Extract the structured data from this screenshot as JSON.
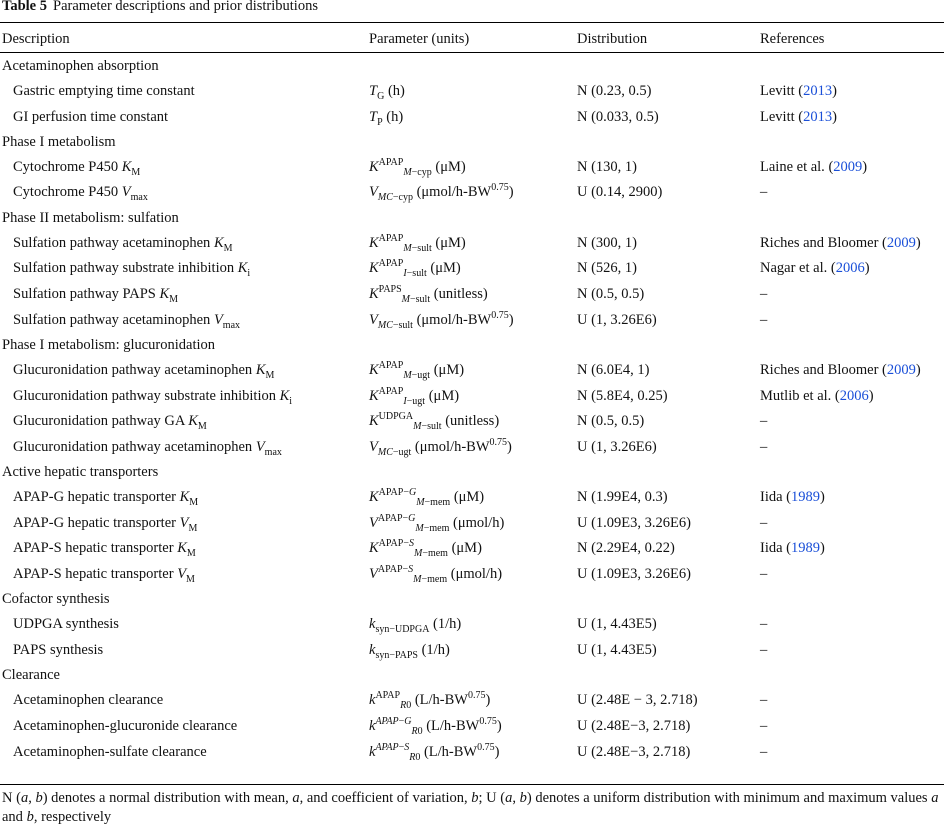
{
  "table_label": "Table 5",
  "table_title": "Parameter descriptions and prior distributions",
  "columns": [
    "Description",
    "Parameter (units)",
    "Distribution",
    "References"
  ],
  "rows": [
    {
      "type": "section",
      "label": "Acetaminophen absorption"
    },
    {
      "type": "row",
      "desc": "Gastric emptying time constant",
      "param_html": "<i>T</i><sub>G</sub> (h)",
      "dist": "N (0.23, 0.5)",
      "ref_author": "Levitt",
      "ref_year": "2013"
    },
    {
      "type": "row",
      "desc": "GI perfusion time constant",
      "param_html": "<i>T</i><sub>P</sub> (h)",
      "dist": "N (0.033, 0.5)",
      "ref_author": "Levitt",
      "ref_year": "2013"
    },
    {
      "type": "section",
      "label": "Phase I metabolism"
    },
    {
      "type": "row",
      "desc_html": "Cytochrome P450 <i>K</i><sub>M</sub>",
      "param_html": "<i>K</i><sup>APAP</sup><sub><i>M</i>−cyp</sub> (μM)",
      "dist": "N (130, 1)",
      "ref_author": "Laine et al.",
      "ref_year": "2009"
    },
    {
      "type": "row",
      "desc_html": "Cytochrome P450 <i>V</i><sub>max</sub>",
      "param_html": "<i>V</i><sub><i>MC</i>−cyp</sub> (μmol/h-BW<sup>0.75</sup>)",
      "dist": "U (0.14, 2900)",
      "ref_text": "–"
    },
    {
      "type": "section",
      "label": "Phase II metabolism: sulfation"
    },
    {
      "type": "row",
      "desc_html": "Sulfation pathway acetaminophen <i>K</i><sub>M</sub>",
      "param_html": "<i>K</i><sup>APAP</sup><sub><i>M</i>−sult</sub> (μM)",
      "dist": "N (300, 1)",
      "ref_author": "Riches and Bloomer",
      "ref_year": "2009"
    },
    {
      "type": "row",
      "desc_html": "Sulfation pathway substrate inhibition <i>K</i><sub>i</sub>",
      "param_html": "<i>K</i><sup>APAP</sup><sub><i>I</i>−sult</sub> (μM)",
      "dist": "N (526, 1)",
      "ref_author": "Nagar et al.",
      "ref_year": "2006"
    },
    {
      "type": "row",
      "desc_html": "Sulfation pathway PAPS <i>K</i><sub>M</sub>",
      "param_html": "<i>K</i><sup>PAPS</sup><sub><i>M</i>−sult</sub> (unitless)",
      "dist": "N (0.5, 0.5)",
      "ref_text": "–"
    },
    {
      "type": "row",
      "desc_html": "Sulfation pathway acetaminophen <i>V</i><sub>max</sub>",
      "param_html": "<i>V</i><sub><i>MC</i>−sult</sub> (μmol/h-BW<sup>0.75</sup>)",
      "dist": "U (1, 3.26E6)",
      "ref_text": "–"
    },
    {
      "type": "section",
      "label": "Phase I metabolism: glucuronidation"
    },
    {
      "type": "row",
      "desc_html": "Glucuronidation pathway acetaminophen <i>K</i><sub>M</sub>",
      "param_html": "<i>K</i><sup>APAP</sup><sub><i>M</i>−ugt</sub> (μM)",
      "dist": "N (6.0E4, 1)",
      "ref_author": "Riches and Bloomer",
      "ref_year": "2009"
    },
    {
      "type": "row",
      "desc_html": "Glucuronidation pathway substrate inhibition <i>K</i><sub>i</sub>",
      "param_html": "<i>K</i><sup>APAP</sup><sub><i>I</i>−ugt</sub> (μM)",
      "dist": "N (5.8E4, 0.25)",
      "ref_author": "Mutlib et al.",
      "ref_year": "2006"
    },
    {
      "type": "row",
      "desc_html": "Glucuronidation pathway GA <i>K</i><sub>M</sub>",
      "param_html": "<i>K</i><sup>UDPGA</sup><sub><i>M</i>−sult</sub> (unitless)",
      "dist": "N (0.5, 0.5)",
      "ref_text": "–"
    },
    {
      "type": "row",
      "desc_html": "Glucuronidation pathway acetaminophen <i>V</i><sub>max</sub>",
      "param_html": "<i>V</i><sub><i>MC</i>−ugt</sub> (μmol/h-BW<sup>0.75</sup>)",
      "dist": "U (1, 3.26E6)",
      "ref_text": "–"
    },
    {
      "type": "section",
      "label": "Active hepatic transporters"
    },
    {
      "type": "row",
      "desc_html": "APAP-G hepatic transporter <i>K</i><sub>M</sub>",
      "param_html": "<i>K</i><sup>APAP−<i>G</i></sup><sub><i>M</i>−mem</sub> (μM)",
      "dist": "N (1.99E4, 0.3)",
      "ref_author": "Iida",
      "ref_year": "1989"
    },
    {
      "type": "row",
      "desc_html": "APAP-G hepatic transporter <i>V</i><sub>M</sub>",
      "param_html": "<i>V</i><sup>APAP−<i>G</i></sup><sub><i>M</i>−mem</sub> (μmol/h)",
      "dist": "U (1.09E3, 3.26E6)",
      "ref_text": "–"
    },
    {
      "type": "row",
      "desc_html": "APAP-S hepatic transporter <i>K</i><sub>M</sub>",
      "param_html": "<i>K</i><sup>APAP−<i>S</i></sup><sub><i>M</i>−mem</sub> (μM)",
      "dist": "N (2.29E4, 0.22)",
      "ref_author": "Iida",
      "ref_year": "1989"
    },
    {
      "type": "row",
      "desc_html": "APAP-S hepatic transporter <i>V</i><sub>M</sub>",
      "param_html": "<i>V</i><sup>APAP−<i>S</i></sup><sub><i>M</i>−mem</sub> (μmol/h)",
      "dist": "U (1.09E3, 3.26E6)",
      "ref_text": "–"
    },
    {
      "type": "section",
      "label": "Cofactor synthesis"
    },
    {
      "type": "row",
      "desc": "UDPGA synthesis",
      "param_html": "<i>k</i><sub>syn−UDPGA</sub> (1/h)",
      "dist": "U (1, 4.43E5)",
      "ref_text": "–"
    },
    {
      "type": "row",
      "desc": "PAPS synthesis",
      "param_html": "<i>k</i><sub>syn−PAPS</sub> (1/h)",
      "dist": "U (1, 4.43E5)",
      "ref_text": "–"
    },
    {
      "type": "section",
      "label": "Clearance"
    },
    {
      "type": "row",
      "desc": "Acetaminophen clearance",
      "param_html": "<i>k</i><sup>APAP</sup><sub><i>R</i>0</sub> (L/h-BW<sup>0.75</sup>)",
      "dist": "U (2.48E − 3, 2.718)",
      "ref_text": "–"
    },
    {
      "type": "row",
      "desc": "Acetaminophen-glucuronide clearance",
      "param_html": "<i>k</i><sup><i>APAP</i>−<i>G</i></sup><sub><i>R</i>0</sub> (L/h-BW<sup>0.75</sup>)",
      "dist": "U (2.48E−3, 2.718)",
      "ref_text": "–"
    },
    {
      "type": "row",
      "desc": "Acetaminophen-sulfate clearance",
      "param_html": "<i>k</i><sup><i>APAP</i>−<i>S</i></sup><sub><i>R</i>0</sub> (L/h-BW<sup>0.75</sup>)",
      "dist": "U (2.48E−3, 2.718)",
      "ref_text": "–"
    }
  ],
  "footnote_html": "N (<i>a</i>, <i>b</i>) denotes a normal distribution with mean, <i>a</i>, and coefficient of variation, <i>b</i>; U (<i>a</i>, <i>b</i>) denotes a uniform distribution with minimum and maximum values <i>a</i> and <i>b</i>, respectively",
  "colors": {
    "link": "#1a4fd8",
    "text": "#111111",
    "rule": "#000000"
  }
}
